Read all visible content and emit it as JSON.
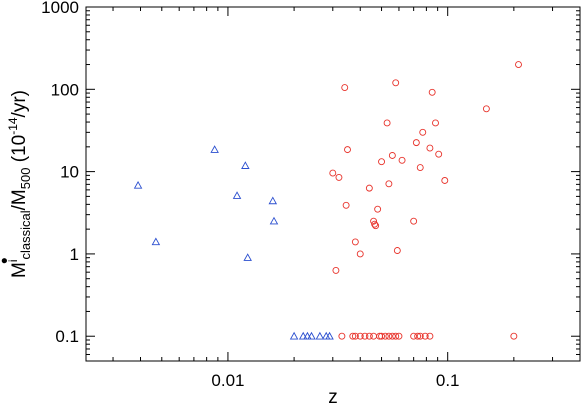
{
  "chart_data": {
    "type": "scatter",
    "xscale": "log",
    "yscale": "log",
    "xlim": [
      0.00226,
      0.4
    ],
    "ylim": [
      0.05,
      1000
    ],
    "grid": false,
    "legend": "none",
    "xlabel": "z",
    "ylabel": {
      "main": "M",
      "dot": "•",
      "sup_i": "i",
      "sub1": "classical",
      "slash": "/M",
      "sub2": "500",
      "units_open": " (10",
      "units_exp": "-14",
      "units_close": "/yr)"
    },
    "xticks": [
      {
        "value": 0.01,
        "label": "0.01"
      },
      {
        "value": 0.1,
        "label": "0.1"
      }
    ],
    "yticks": [
      {
        "value": 0.1,
        "label": "0.1"
      },
      {
        "value": 1,
        "label": "1"
      },
      {
        "value": 10,
        "label": "10"
      },
      {
        "value": 100,
        "label": "100"
      },
      {
        "value": 1000,
        "label": "1000"
      }
    ],
    "series": [
      {
        "marker": "triangle",
        "color": "#2b4fcf",
        "points": [
          [
            0.0039,
            6.8
          ],
          [
            0.0047,
            1.4
          ],
          [
            0.0087,
            18.5
          ],
          [
            0.011,
            5.1
          ],
          [
            0.012,
            11.8
          ],
          [
            0.0123,
            0.9
          ],
          [
            0.016,
            4.4
          ],
          [
            0.0162,
            2.5
          ],
          [
            0.02,
            0.1
          ],
          [
            0.022,
            0.1
          ],
          [
            0.023,
            0.1
          ],
          [
            0.024,
            0.1
          ],
          [
            0.0262,
            0.1
          ],
          [
            0.028,
            0.1
          ],
          [
            0.029,
            0.1
          ]
        ]
      },
      {
        "marker": "circle",
        "color": "#e8332b",
        "points": [
          [
            0.03,
            9.6
          ],
          [
            0.031,
            0.63
          ],
          [
            0.032,
            8.5
          ],
          [
            0.034,
            105
          ],
          [
            0.0345,
            3.9
          ],
          [
            0.035,
            18.5
          ],
          [
            0.038,
            1.4
          ],
          [
            0.04,
            1.0
          ],
          [
            0.044,
            6.3
          ],
          [
            0.046,
            2.5
          ],
          [
            0.0465,
            2.3
          ],
          [
            0.047,
            2.2
          ],
          [
            0.048,
            3.5
          ],
          [
            0.05,
            13.2
          ],
          [
            0.053,
            39
          ],
          [
            0.054,
            7.1
          ],
          [
            0.056,
            15.7
          ],
          [
            0.058,
            120
          ],
          [
            0.059,
            1.1
          ],
          [
            0.062,
            13.7
          ],
          [
            0.07,
            2.5
          ],
          [
            0.072,
            22.5
          ],
          [
            0.075,
            11.2
          ],
          [
            0.077,
            30
          ],
          [
            0.083,
            19.3
          ],
          [
            0.085,
            92
          ],
          [
            0.088,
            39
          ],
          [
            0.091,
            16.3
          ],
          [
            0.097,
            7.8
          ],
          [
            0.15,
            58
          ],
          [
            0.21,
            200
          ],
          [
            0.033,
            0.1
          ],
          [
            0.037,
            0.1
          ],
          [
            0.038,
            0.1
          ],
          [
            0.04,
            0.1
          ],
          [
            0.042,
            0.1
          ],
          [
            0.044,
            0.1
          ],
          [
            0.046,
            0.1
          ],
          [
            0.049,
            0.1
          ],
          [
            0.05,
            0.1
          ],
          [
            0.052,
            0.1
          ],
          [
            0.054,
            0.1
          ],
          [
            0.056,
            0.1
          ],
          [
            0.058,
            0.1
          ],
          [
            0.06,
            0.1
          ],
          [
            0.07,
            0.1
          ],
          [
            0.073,
            0.1
          ],
          [
            0.075,
            0.1
          ],
          [
            0.079,
            0.1
          ],
          [
            0.083,
            0.1
          ],
          [
            0.2,
            0.1
          ]
        ]
      }
    ]
  }
}
